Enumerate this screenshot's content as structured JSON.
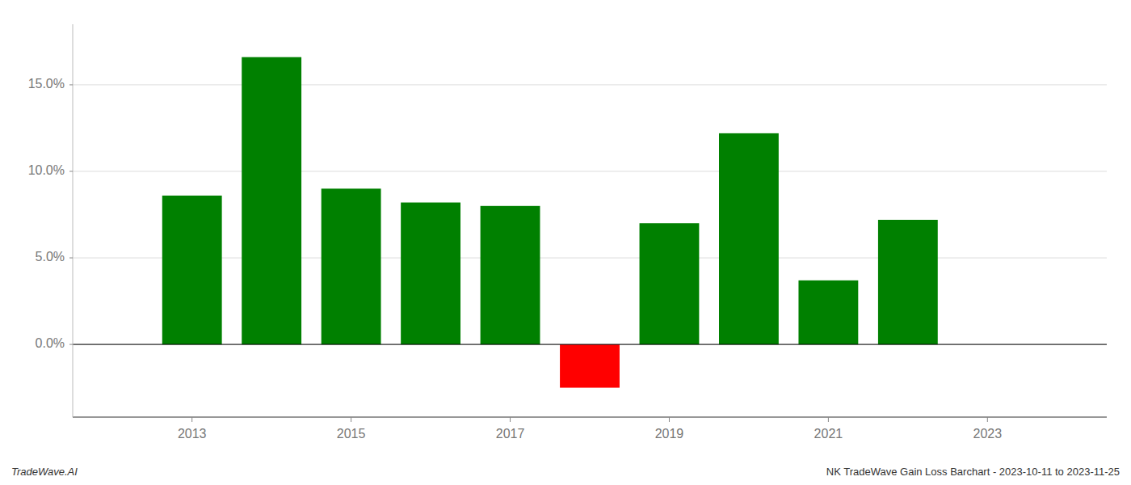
{
  "chart_data": {
    "type": "bar",
    "x": [
      2013,
      2014,
      2015,
      2016,
      2017,
      2018,
      2019,
      2020,
      2021,
      2022
    ],
    "values": [
      0.086,
      0.166,
      0.09,
      0.082,
      0.08,
      -0.025,
      0.07,
      0.122,
      0.037,
      0.072
    ],
    "colors": [
      "#008000",
      "#008000",
      "#008000",
      "#008000",
      "#008000",
      "#ff0000",
      "#008000",
      "#008000",
      "#008000",
      "#008000"
    ],
    "xlim": [
      2011.5,
      2024.5
    ],
    "xticks": [
      2013,
      2015,
      2017,
      2019,
      2021,
      2023
    ],
    "ylim": [
      -0.042,
      0.185
    ],
    "yticks": [
      {
        "value": 0.0,
        "label": "0.0%"
      },
      {
        "value": 0.05,
        "label": "5.0%"
      },
      {
        "value": 0.1,
        "label": "10.0%"
      },
      {
        "value": 0.15,
        "label": "15.0%"
      }
    ],
    "grid": true,
    "annotations": [
      "TradeWave.AI",
      "NK TradeWave Gain Loss Barchart - 2023-10-11 to 2023-11-25"
    ]
  }
}
